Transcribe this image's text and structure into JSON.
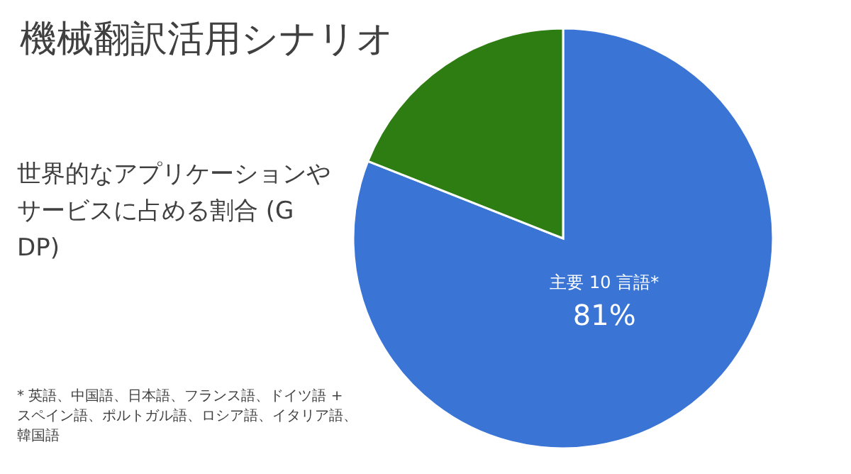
{
  "chart_data": {
    "type": "pie",
    "title": "機械翻訳活用シナリオ",
    "subtitle": "世界的なアプリケーションやサービスに占める割合 (GDP)",
    "categories": [
      "主要 10 言語*",
      null
    ],
    "values": [
      81,
      19
    ],
    "colors": [
      "#3a75d6",
      "#2e7d12"
    ],
    "value_labels": [
      "81%",
      null
    ],
    "annotations": [
      "* 英語、中国語、日本語、フランス語、ドイツ語 + スペイン語、ポルトガル語、ロシア語、イタリア語、韓国語"
    ]
  }
}
